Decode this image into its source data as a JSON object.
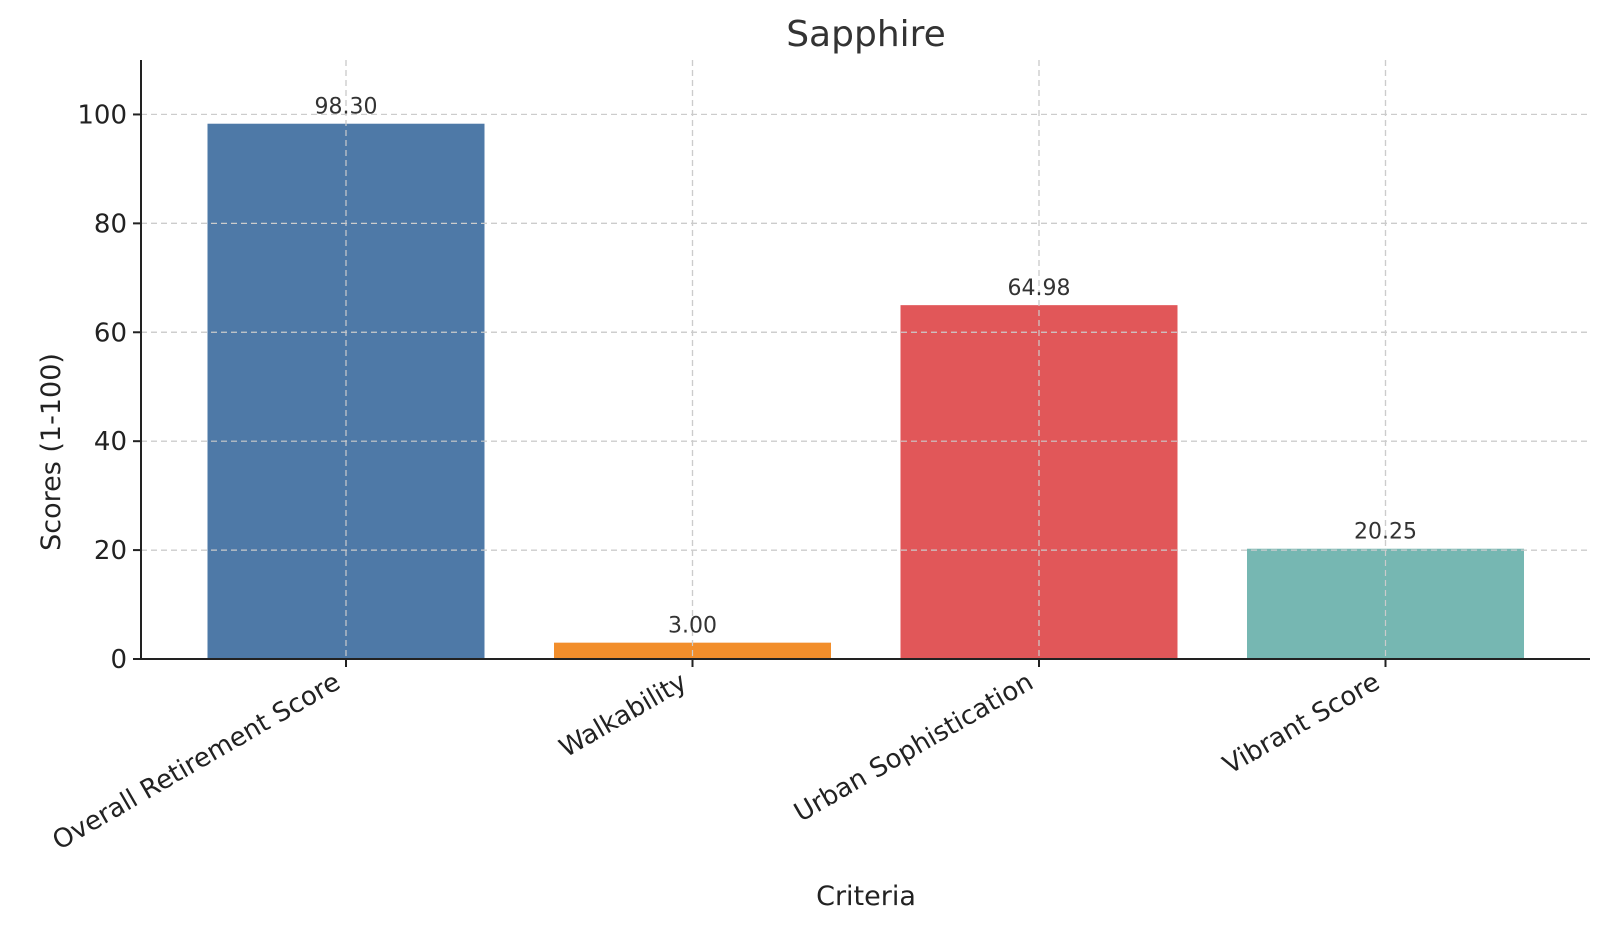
{
  "chart_data": {
    "type": "bar",
    "title": "Sapphire",
    "xlabel": "Criteria",
    "ylabel": "Scores (1-100)",
    "categories": [
      "Overall Retirement Score",
      "Walkability",
      "Urban Sophistication",
      "Vibrant Score"
    ],
    "values": [
      98.3,
      3.0,
      64.98,
      20.25
    ],
    "value_labels": [
      "98.30",
      "3.00",
      "64.98",
      "20.25"
    ],
    "colors": [
      "#4e79a7",
      "#f28e2b",
      "#e15759",
      "#76b7b2"
    ],
    "ylim": [
      0,
      110
    ],
    "yticks": [
      0,
      20,
      40,
      60,
      80,
      100
    ],
    "grid": true,
    "legend": false
  }
}
